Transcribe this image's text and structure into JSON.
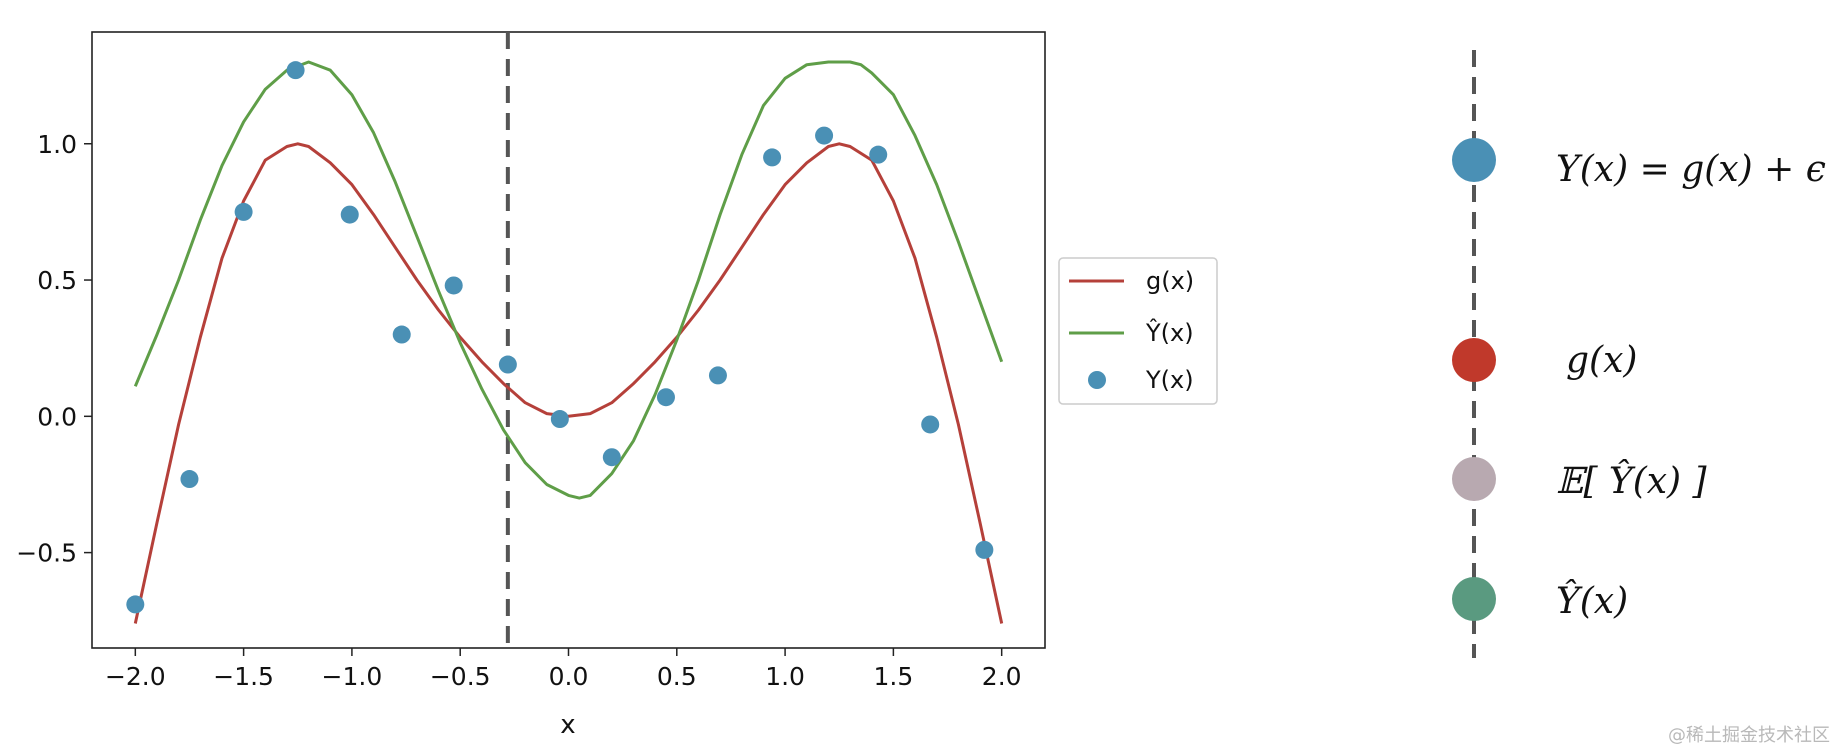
{
  "chart_data": {
    "type": "line",
    "xlabel": "x",
    "ylabel": "",
    "xlim": [
      -2.2,
      2.2
    ],
    "ylim": [
      -0.85,
      1.41
    ],
    "x_ticks": [
      -2.0,
      -1.5,
      -1.0,
      -0.5,
      0.0,
      0.5,
      1.0,
      1.5,
      2.0
    ],
    "x_tick_labels": [
      "−2.0",
      "−1.5",
      "−1.0",
      "−0.5",
      "0.0",
      "0.5",
      "1.0",
      "1.5",
      "2.0"
    ],
    "y_ticks": [
      -0.5,
      0.0,
      0.5,
      1.0
    ],
    "y_tick_labels": [
      "−0.5",
      "0.0",
      "0.5",
      "1.0"
    ],
    "vline_x": -0.28,
    "legend_position": "outside-right",
    "series": [
      {
        "name": "g(x)",
        "kind": "line",
        "color": "#b5403a",
        "x": [
          -2.0,
          -1.9,
          -1.8,
          -1.7,
          -1.6,
          -1.5,
          -1.4,
          -1.3,
          -1.25,
          -1.2,
          -1.1,
          -1.0,
          -0.9,
          -0.8,
          -0.7,
          -0.6,
          -0.5,
          -0.4,
          -0.3,
          -0.2,
          -0.1,
          0.0,
          0.1,
          0.2,
          0.3,
          0.4,
          0.5,
          0.6,
          0.7,
          0.8,
          0.9,
          1.0,
          1.1,
          1.2,
          1.25,
          1.3,
          1.4,
          1.5,
          1.6,
          1.7,
          1.8,
          1.9,
          2.0
        ],
        "y": [
          -0.76,
          -0.39,
          -0.03,
          0.29,
          0.58,
          0.79,
          0.94,
          0.99,
          1.0,
          0.99,
          0.93,
          0.85,
          0.74,
          0.62,
          0.5,
          0.39,
          0.29,
          0.2,
          0.12,
          0.05,
          0.01,
          0.0,
          0.01,
          0.05,
          0.12,
          0.2,
          0.29,
          0.39,
          0.5,
          0.62,
          0.74,
          0.85,
          0.93,
          0.99,
          1.0,
          0.99,
          0.94,
          0.79,
          0.58,
          0.29,
          -0.03,
          -0.39,
          -0.76
        ]
      },
      {
        "name": "Ŷ(x)",
        "kind": "line",
        "color": "#5f9e48",
        "x": [
          -2.0,
          -1.9,
          -1.8,
          -1.7,
          -1.6,
          -1.5,
          -1.4,
          -1.3,
          -1.2,
          -1.1,
          -1.0,
          -0.9,
          -0.8,
          -0.7,
          -0.6,
          -0.5,
          -0.4,
          -0.3,
          -0.2,
          -0.1,
          0.0,
          0.05,
          0.1,
          0.2,
          0.3,
          0.4,
          0.5,
          0.6,
          0.7,
          0.8,
          0.9,
          1.0,
          1.1,
          1.2,
          1.3,
          1.35,
          1.4,
          1.5,
          1.6,
          1.7,
          1.8,
          1.9,
          2.0
        ],
        "y": [
          0.11,
          0.3,
          0.5,
          0.72,
          0.92,
          1.08,
          1.2,
          1.27,
          1.3,
          1.27,
          1.18,
          1.04,
          0.86,
          0.66,
          0.46,
          0.27,
          0.1,
          -0.05,
          -0.17,
          -0.25,
          -0.29,
          -0.3,
          -0.29,
          -0.21,
          -0.09,
          0.08,
          0.28,
          0.5,
          0.74,
          0.96,
          1.14,
          1.24,
          1.29,
          1.3,
          1.3,
          1.29,
          1.26,
          1.18,
          1.03,
          0.85,
          0.64,
          0.42,
          0.2
        ]
      },
      {
        "name": "Y(x)",
        "kind": "scatter",
        "color": "#4a90b5",
        "x": [
          -2.0,
          -1.75,
          -1.5,
          -1.26,
          -1.01,
          -0.77,
          -0.53,
          -0.28,
          -0.04,
          0.2,
          0.45,
          0.69,
          0.94,
          1.18,
          1.43,
          1.67,
          1.92
        ],
        "y": [
          -0.69,
          -0.23,
          0.75,
          1.27,
          0.74,
          0.3,
          0.48,
          0.19,
          -0.01,
          -0.15,
          0.07,
          0.15,
          0.95,
          1.03,
          0.96,
          -0.03,
          -0.49
        ]
      }
    ]
  },
  "legend_items": [
    {
      "label": "g(x)",
      "color": "#b5403a",
      "kind": "line"
    },
    {
      "label": "Ŷ(x)",
      "color": "#5f9e48",
      "kind": "line"
    },
    {
      "label": "Y(x)",
      "color": "#4a90b5",
      "kind": "marker"
    }
  ],
  "key_items": [
    {
      "label": "Y(x) = g(x) + ϵ",
      "color": "#4a90b5"
    },
    {
      "label": "g(x)",
      "color": "#c0392b"
    },
    {
      "label": "𝔼[ Ŷ(x) ]",
      "color": "#b8a9b0"
    },
    {
      "label": "Ŷ(x)",
      "color": "#5a9a80"
    }
  ],
  "watermark": "@稀土掘金技术社区"
}
